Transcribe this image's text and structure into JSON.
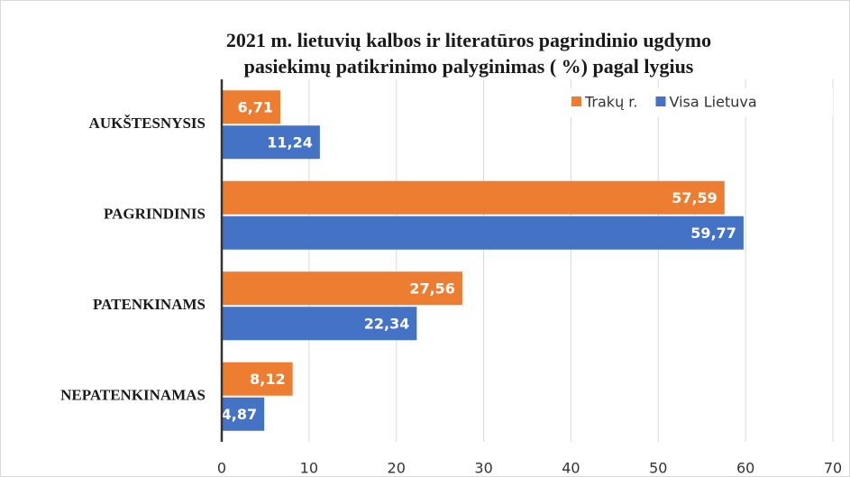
{
  "chart_data": {
    "type": "hbar",
    "title": [
      "2021 m. lietuvių kalbos ir literatūros pagrindinio ugdymo",
      "pasiekimų patikrinimo palyginimas ( %) pagal lygius"
    ],
    "categories": [
      "AUKŠTESNYSIS",
      "PAGRINDINIS",
      "PATENKINAMS",
      "NEPATENKINAMAS"
    ],
    "series": [
      {
        "name": "Trakų r.",
        "color": "#ED7D31",
        "values": [
          6.71,
          57.59,
          27.56,
          8.12
        ],
        "value_labels": [
          "6,71",
          "57,59",
          "27,56",
          "8,12"
        ]
      },
      {
        "name": "Visa Lietuva",
        "color": "#4472C4",
        "values": [
          11.24,
          59.77,
          22.34,
          4.87
        ],
        "value_labels": [
          "11,24",
          "59,77",
          "22,34",
          "4,87"
        ]
      }
    ],
    "xlim": [
      0,
      70
    ],
    "xticks": [
      0,
      10,
      20,
      30,
      40,
      50,
      60,
      70
    ],
    "grid": true,
    "legend": "top-right"
  }
}
